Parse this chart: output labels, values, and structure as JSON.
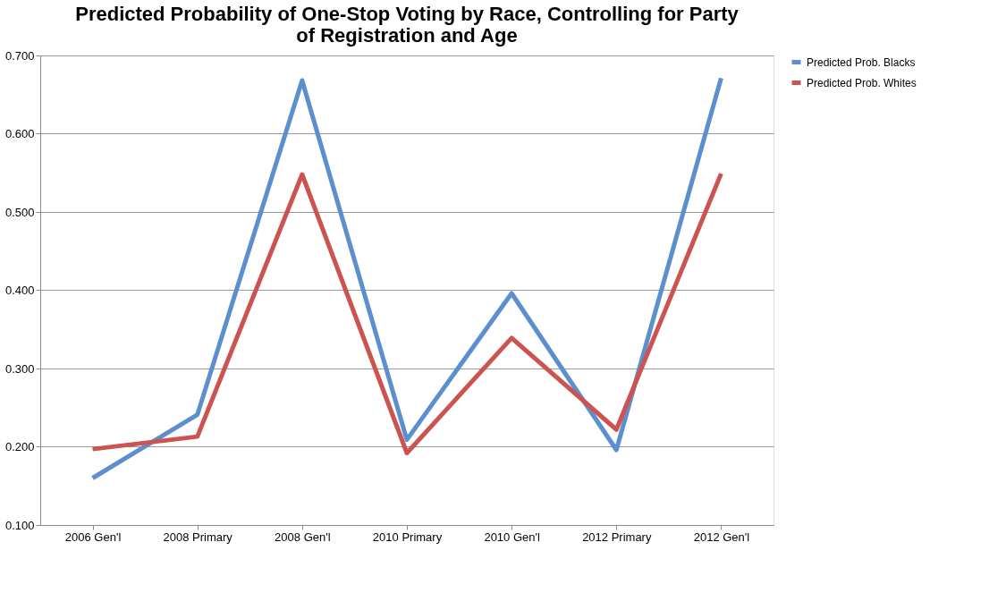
{
  "chart_data": {
    "type": "line",
    "title": [
      "Predicted Probability of One-Stop Voting by Race, Controlling for Party",
      "of Registration and Age"
    ],
    "categories": [
      "2006 Gen'l",
      "2008 Primary",
      "2008 Gen'l",
      "2010 Primary",
      "2010 Gen'l",
      "2012 Primary",
      "2012 Gen'l"
    ],
    "series": [
      {
        "name": "Predicted Prob. Blacks",
        "color": "#5b8fce",
        "values": [
          0.16,
          0.241,
          0.668,
          0.209,
          0.396,
          0.196,
          0.671
        ]
      },
      {
        "name": "Predicted Prob. Whites",
        "color": "#cc5450",
        "values": [
          0.197,
          0.213,
          0.548,
          0.192,
          0.339,
          0.222,
          0.549
        ]
      }
    ],
    "ylim": [
      0.1,
      0.7
    ],
    "yticks": [
      {
        "value": 0.1,
        "label": "0.100"
      },
      {
        "value": 0.2,
        "label": "0.200"
      },
      {
        "value": 0.3,
        "label": "0.300"
      },
      {
        "value": 0.4,
        "label": "0.400"
      },
      {
        "value": 0.5,
        "label": "0.500"
      },
      {
        "value": 0.6,
        "label": "0.600"
      },
      {
        "value": 0.7,
        "label": "0.700"
      }
    ],
    "grid": "y",
    "legend": "right",
    "marker": "none",
    "line_style": "solid"
  }
}
